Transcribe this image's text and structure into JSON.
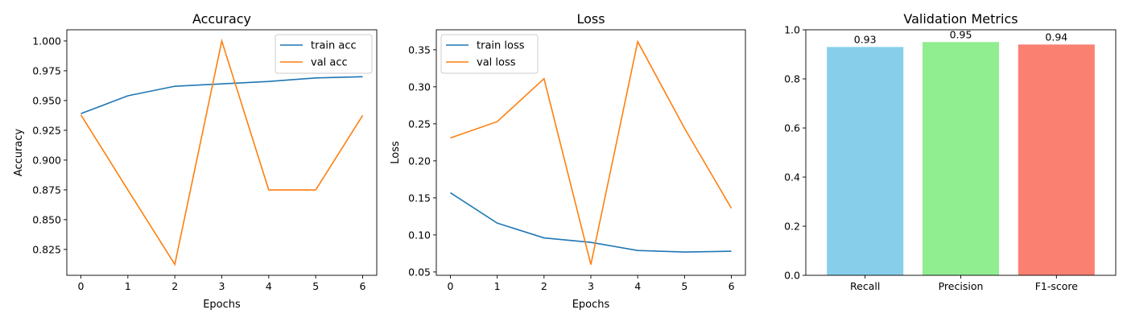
{
  "chart_data": [
    {
      "type": "line",
      "title": "Accuracy",
      "xlabel": "Epochs",
      "ylabel": "Accuracy",
      "x": [
        0,
        1,
        2,
        3,
        4,
        5,
        6
      ],
      "xticks": [
        "0",
        "1",
        "2",
        "3",
        "4",
        "5",
        "6"
      ],
      "xlim": [
        -0.3,
        6.3
      ],
      "ylim": [
        0.8033,
        1.0094
      ],
      "yticks": [
        "0.825",
        "0.850",
        "0.875",
        "0.900",
        "0.925",
        "0.950",
        "0.975",
        "1.000"
      ],
      "legend_position": "upper-right",
      "grid": false,
      "series": [
        {
          "name": "train acc",
          "color": "#1f77b4",
          "values": [
            0.939,
            0.954,
            0.962,
            0.964,
            0.966,
            0.969,
            0.97
          ]
        },
        {
          "name": "val acc",
          "color": "#ff7f0e",
          "values": [
            0.938,
            0.875,
            0.8125,
            1.0,
            0.875,
            0.875,
            0.9375
          ]
        }
      ]
    },
    {
      "type": "line",
      "title": "Loss",
      "xlabel": "Epochs",
      "ylabel": "Loss",
      "x": [
        0,
        1,
        2,
        3,
        4,
        5,
        6
      ],
      "xticks": [
        "0",
        "1",
        "2",
        "3",
        "4",
        "5",
        "6"
      ],
      "xlim": [
        -0.3,
        6.3
      ],
      "ylim": [
        0.0455,
        0.377
      ],
      "yticks": [
        "0.05",
        "0.10",
        "0.15",
        "0.20",
        "0.25",
        "0.30",
        "0.35"
      ],
      "legend_position": "upper-left",
      "grid": false,
      "series": [
        {
          "name": "train loss",
          "color": "#1f77b4",
          "values": [
            0.157,
            0.116,
            0.096,
            0.09,
            0.079,
            0.077,
            0.078
          ]
        },
        {
          "name": "val loss",
          "color": "#ff7f0e",
          "values": [
            0.231,
            0.253,
            0.311,
            0.06,
            0.361,
            0.244,
            0.136
          ]
        }
      ]
    },
    {
      "type": "bar",
      "title": "Validation Metrics",
      "categories": [
        "Recall",
        "Precision",
        "F1-score"
      ],
      "values": [
        0.93,
        0.95,
        0.94
      ],
      "value_labels": [
        "0.93",
        "0.95",
        "0.94"
      ],
      "colors": [
        "#87ceeb",
        "#90ee90",
        "#fa8072"
      ],
      "ylim": [
        0,
        1.0
      ],
      "yticks": [
        "0.0",
        "0.2",
        "0.4",
        "0.6",
        "0.8",
        "1.0"
      ],
      "grid": false
    }
  ]
}
